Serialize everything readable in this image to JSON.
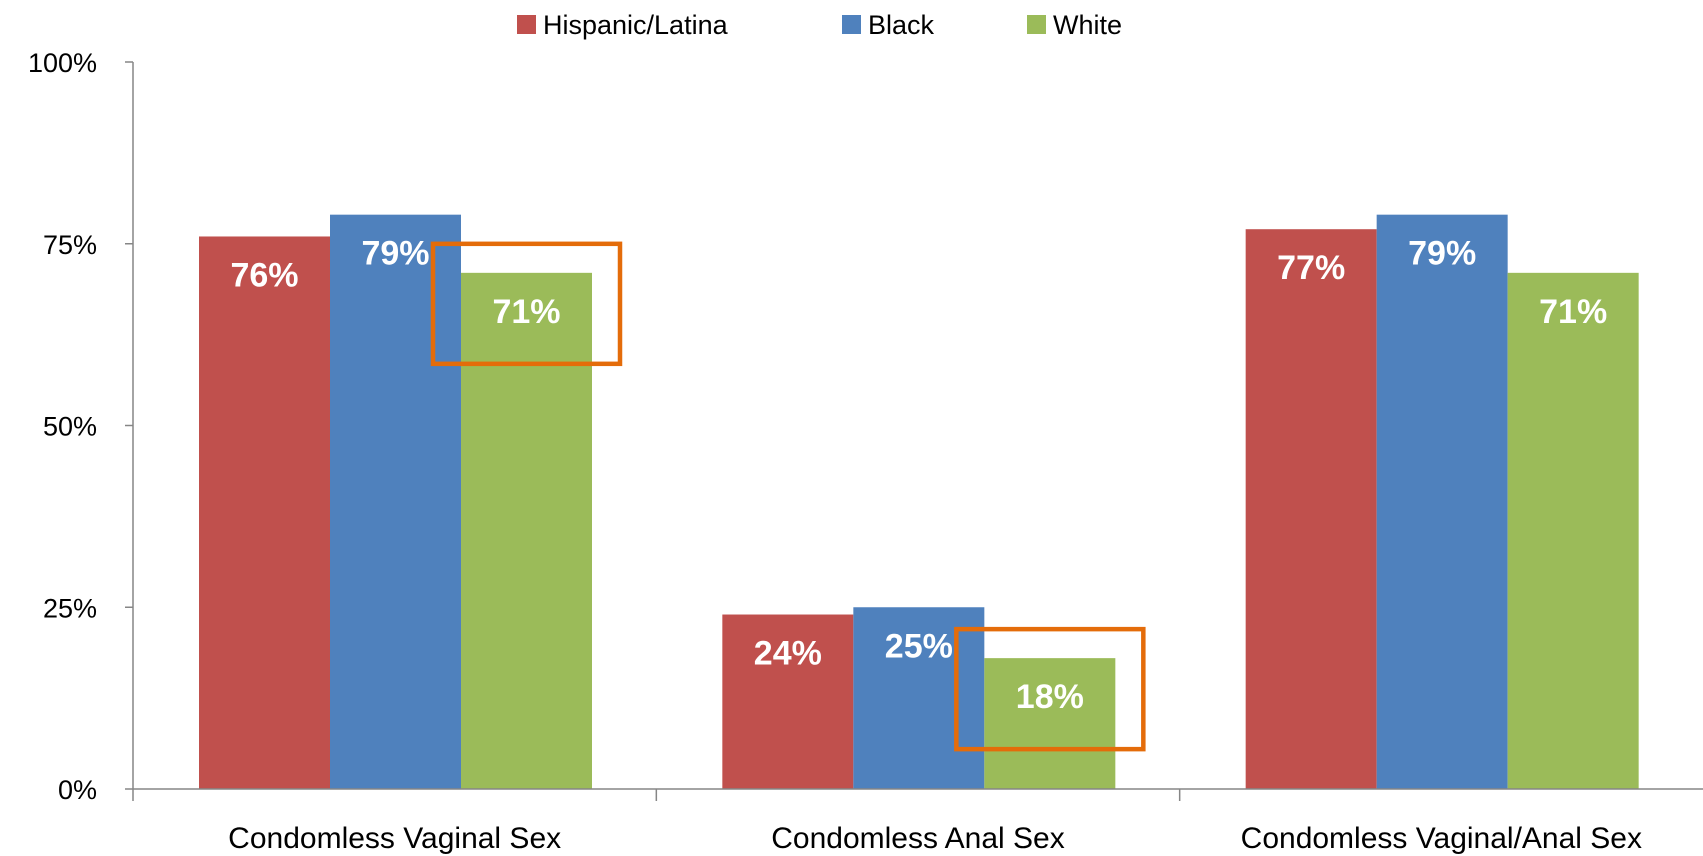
{
  "chart_data": {
    "type": "bar",
    "categories": [
      "Condomless Vaginal Sex",
      "Condomless Anal Sex",
      "Condomless Vaginal/Anal Sex"
    ],
    "series": [
      {
        "name": "Hispanic/Latina",
        "color": "#C0504D",
        "values": [
          76,
          24,
          77
        ],
        "labels": [
          "76%",
          "24%",
          "77%"
        ]
      },
      {
        "name": "Black",
        "color": "#4F81BD",
        "values": [
          79,
          25,
          79
        ],
        "labels": [
          "79%",
          "25%",
          "79%"
        ]
      },
      {
        "name": "White",
        "color": "#9BBB59",
        "values": [
          71,
          18,
          71
        ],
        "labels": [
          "71%",
          "18%",
          "71%"
        ]
      }
    ],
    "ylim": [
      0,
      100
    ],
    "yticks": [
      0,
      25,
      50,
      75,
      100
    ],
    "ytick_labels": [
      "0%",
      "25%",
      "50%",
      "75%",
      "100%"
    ],
    "legend_position": "top",
    "grid": false,
    "highlight_color": "#E46C0A",
    "highlights": [
      {
        "series": "White",
        "category": "Condomless Vaginal Sex"
      },
      {
        "series": "White",
        "category": "Condomless Anal Sex"
      }
    ]
  }
}
